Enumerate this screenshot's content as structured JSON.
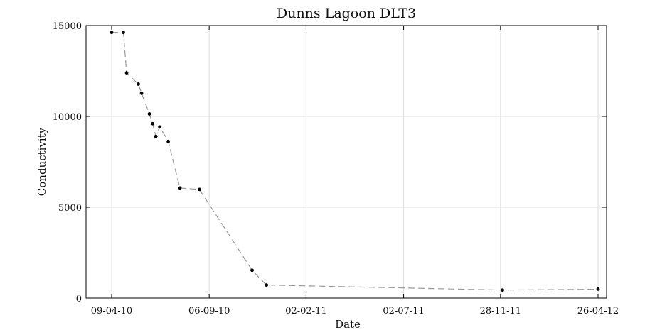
{
  "chart_data": {
    "type": "line",
    "title": "Dunns Lagoon DLT3",
    "xlabel": "Date",
    "ylabel": "Conductivity",
    "x_tick_labels": [
      "09-04-10",
      "06-09-10",
      "02-02-11",
      "02-07-11",
      "28-11-11",
      "26-04-12"
    ],
    "x_tick_dates": [
      "2010-04-09",
      "2010-09-06",
      "2011-02-02",
      "2011-07-02",
      "2011-11-28",
      "2012-04-26"
    ],
    "xlim": [
      "2010-04-09",
      "2012-04-26"
    ],
    "y_tick_labels": [
      "0",
      "5000",
      "10000",
      "15000"
    ],
    "y_ticks": [
      0,
      5000,
      10000,
      15000
    ],
    "ylim": [
      0,
      15000
    ],
    "grid": true,
    "line_style": "dashed",
    "marker": "dot",
    "series": [
      {
        "points": [
          {
            "x": "2010-04-09",
            "y": 14620
          },
          {
            "x": "2010-04-27",
            "y": 14620
          },
          {
            "x": "2010-05-02",
            "y": 12400
          },
          {
            "x": "2010-05-20",
            "y": 11780
          },
          {
            "x": "2010-05-25",
            "y": 11270
          },
          {
            "x": "2010-06-06",
            "y": 10140
          },
          {
            "x": "2010-06-11",
            "y": 9600
          },
          {
            "x": "2010-06-16",
            "y": 8900
          },
          {
            "x": "2010-06-22",
            "y": 9420
          },
          {
            "x": "2010-07-05",
            "y": 8620
          },
          {
            "x": "2010-07-23",
            "y": 6060
          },
          {
            "x": "2010-08-22",
            "y": 5980
          },
          {
            "x": "2010-11-11",
            "y": 1530
          },
          {
            "x": "2010-12-03",
            "y": 720
          },
          {
            "x": "2011-12-01",
            "y": 440
          },
          {
            "x": "2012-04-26",
            "y": 490
          }
        ]
      }
    ]
  }
}
